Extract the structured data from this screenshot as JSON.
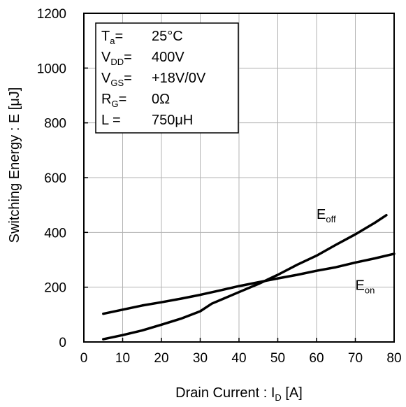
{
  "chart_data": {
    "type": "line",
    "xlabel": "Drain Current : I",
    "xlabel_sub": "D",
    "xlabel_unit": " [A]",
    "ylabel": "Switching Energy : E [μJ]",
    "xlim": [
      0,
      80
    ],
    "ylim": [
      0,
      1200
    ],
    "x_ticks": [
      0,
      10,
      20,
      30,
      40,
      50,
      60,
      70,
      80
    ],
    "y_ticks": [
      0,
      200,
      400,
      600,
      800,
      1000,
      1200
    ],
    "grid": true,
    "conditions": [
      {
        "sym": "T",
        "sub": "a",
        "eq": "=",
        "val": "25°C"
      },
      {
        "sym": "V",
        "sub": "DD",
        "eq": "=",
        "val": "400V"
      },
      {
        "sym": "V",
        "sub": "GS",
        "eq": "=",
        "val": "+18V/0V"
      },
      {
        "sym": "R",
        "sub": "G",
        "eq": "=",
        "val": "0Ω"
      },
      {
        "sym": "L",
        "sub": "",
        "eq": " =",
        "val": "750μH"
      }
    ],
    "series": [
      {
        "name": "E",
        "sub": "off",
        "label_pos": [
          60,
          450
        ],
        "x": [
          5,
          10,
          15,
          20,
          25,
          30,
          33,
          36,
          40,
          45,
          50,
          55,
          60,
          65,
          70,
          75,
          78
        ],
        "y": [
          10,
          25,
          42,
          63,
          85,
          112,
          140,
          158,
          182,
          212,
          245,
          282,
          315,
          355,
          393,
          435,
          463
        ]
      },
      {
        "name": "E",
        "sub": "on",
        "label_pos": [
          70,
          190
        ],
        "x": [
          5,
          10,
          15,
          20,
          25,
          30,
          35,
          40,
          45,
          50,
          55,
          60,
          65,
          70,
          75,
          80
        ],
        "y": [
          103,
          118,
          133,
          145,
          158,
          172,
          188,
          204,
          218,
          232,
          245,
          260,
          273,
          290,
          305,
          322
        ]
      }
    ]
  }
}
